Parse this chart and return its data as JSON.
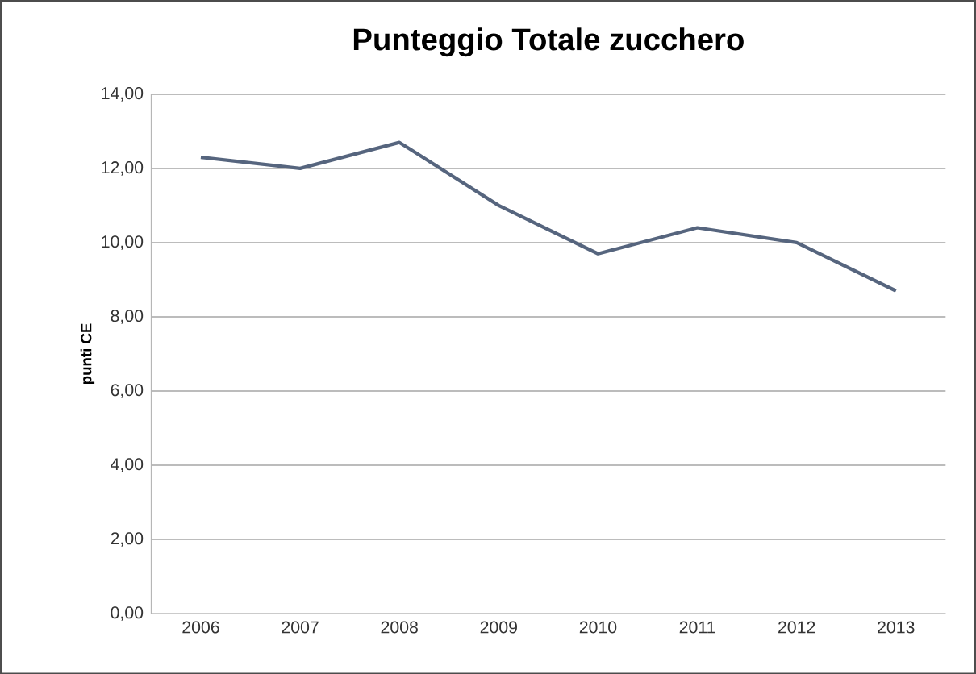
{
  "chart_data": {
    "type": "line",
    "title": "Punteggio Totale zucchero",
    "ylabel": "punti CE",
    "categories": [
      "2006",
      "2007",
      "2008",
      "2009",
      "2010",
      "2011",
      "2012",
      "2013"
    ],
    "series": [
      {
        "color": "#56657e",
        "values": [
          12.3,
          12.0,
          12.7,
          11.0,
          9.7,
          10.4,
          10.0,
          8.7
        ]
      }
    ],
    "ylim": [
      0,
      14
    ],
    "yticks": [
      {
        "value": 0,
        "label": "0,00"
      },
      {
        "value": 2,
        "label": "2,00"
      },
      {
        "value": 4,
        "label": "4,00"
      },
      {
        "value": 6,
        "label": "6,00"
      },
      {
        "value": 8,
        "label": "8,00"
      },
      {
        "value": 10,
        "label": "10,00"
      },
      {
        "value": 12,
        "label": "12,00"
      },
      {
        "value": 14,
        "label": "14,00"
      }
    ],
    "grid": "y",
    "marker": "none",
    "line_style": "solid"
  }
}
